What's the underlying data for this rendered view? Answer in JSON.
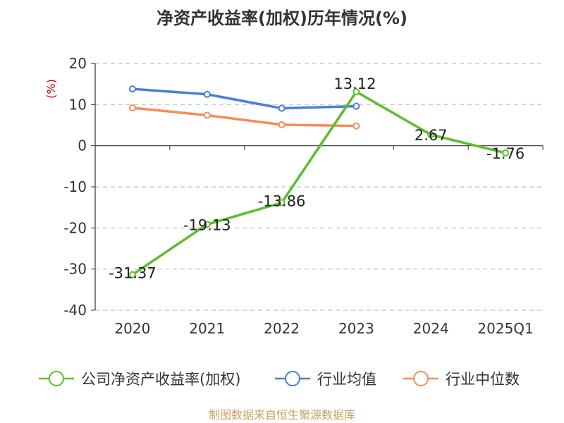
{
  "chart_data": {
    "type": "line",
    "title": "净资产收益率(加权)历年情况(%)",
    "ylabel": "(%)",
    "xlabel": "",
    "categories": [
      "2020",
      "2021",
      "2022",
      "2023",
      "2024",
      "2025Q1"
    ],
    "ylim": [
      -40,
      20
    ],
    "yticks": [
      -40,
      -30,
      -20,
      -10,
      0,
      10,
      20
    ],
    "grid": true,
    "legend_position": "bottom",
    "series": [
      {
        "name": "公司净资产收益率(加权)",
        "color": "#5cbf2a",
        "values": [
          -31.37,
          -19.13,
          -13.86,
          13.12,
          2.67,
          -1.76
        ],
        "labels": [
          "-31.37",
          "-19.13",
          "-13.86",
          "13.12",
          "2.67",
          "-1.76"
        ]
      },
      {
        "name": "行业均值",
        "color": "#4a7fd4",
        "values": [
          13.8,
          12.5,
          9.1,
          9.6,
          null,
          null
        ]
      },
      {
        "name": "行业中位数",
        "color": "#f58d5a",
        "values": [
          9.2,
          7.4,
          5.1,
          4.8,
          null,
          null
        ]
      }
    ]
  },
  "source": "制图数据来自恒生聚源数据库"
}
